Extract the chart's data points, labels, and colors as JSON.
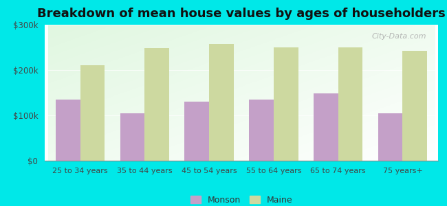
{
  "title": "Breakdown of mean house values by ages of householders",
  "categories": [
    "25 to 34 years",
    "35 to 44 years",
    "45 to 54 years",
    "55 to 64 years",
    "65 to 74 years",
    "75 years+"
  ],
  "monson_values": [
    135000,
    105000,
    130000,
    135000,
    148000,
    105000
  ],
  "maine_values": [
    210000,
    248000,
    258000,
    250000,
    250000,
    243000
  ],
  "monson_color": "#c4a0c8",
  "maine_color": "#cdd9a0",
  "background_color": "#00e8e8",
  "ylim": [
    0,
    300000
  ],
  "yticks": [
    0,
    100000,
    200000,
    300000
  ],
  "ytick_labels": [
    "$0",
    "$100k",
    "$200k",
    "$300k"
  ],
  "legend_labels": [
    "Monson",
    "Maine"
  ],
  "title_fontsize": 13,
  "watermark": "City-Data.com",
  "bar_width": 0.38
}
